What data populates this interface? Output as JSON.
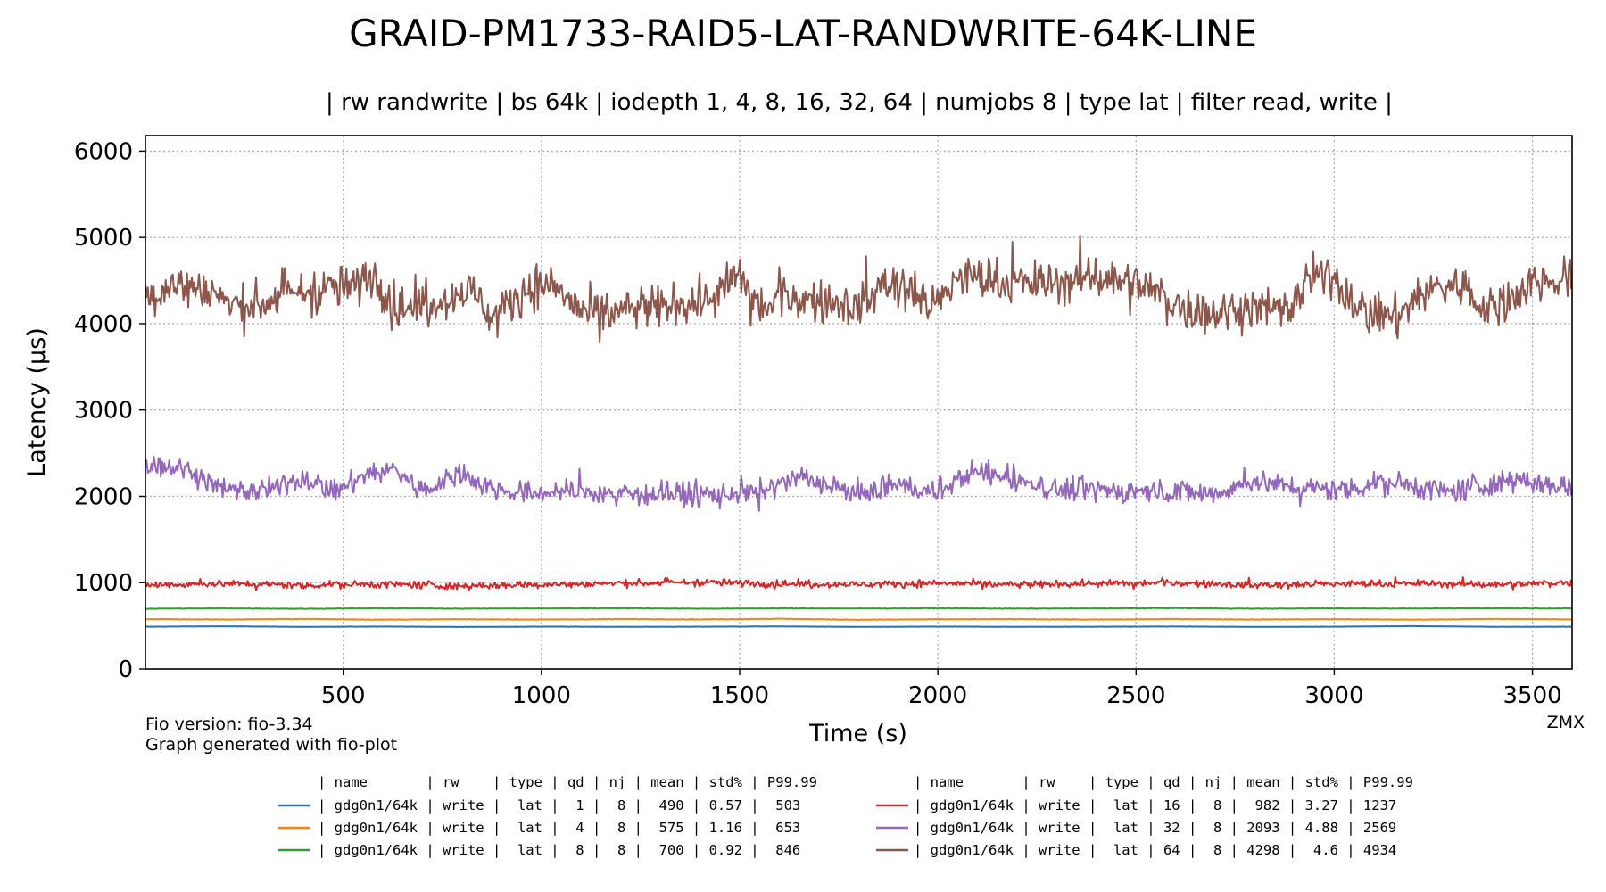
{
  "chart_data": {
    "type": "line",
    "title": "GRAID-PM1733-RAID5-LAT-RANDWRITE-64K-LINE",
    "subtitle": "| rw randwrite | bs 64k | iodepth 1, 4, 8, 16, 32, 64 | numjobs 8 | type lat | filter read, write |",
    "xlabel": "Time (s)",
    "ylabel": "Latency (µs)",
    "xlim": [
      1,
      3600
    ],
    "ylim": [
      0,
      6180
    ],
    "xticks": [
      500,
      1000,
      1500,
      2000,
      2500,
      3000,
      3500
    ],
    "yticks": [
      0,
      1000,
      2000,
      3000,
      4000,
      5000,
      6000
    ],
    "grid": true,
    "notes": [
      "Fio version: fio-3.34",
      "Graph generated with fio-plot"
    ],
    "corner_label": "ZMX",
    "legend_header": "| name       | rw    | type | qd | nj | mean | std% | P99.99",
    "series": [
      {
        "name": "| gdg0n1/64k | write |  lat |  1 |  8 |  490 | 0.57 |  503",
        "color": "#1f77b4",
        "mean": 490,
        "std_pct": 0.57,
        "p9999": 503,
        "x": [
          1,
          200,
          400,
          600,
          800,
          1000,
          1200,
          1400,
          1600,
          1800,
          2000,
          2200,
          2400,
          2600,
          2800,
          3000,
          3200,
          3400,
          3600
        ],
        "values": [
          490,
          495,
          488,
          492,
          487,
          491,
          489,
          490,
          493,
          488,
          491,
          489,
          490,
          492,
          488,
          490,
          497,
          489,
          490
        ]
      },
      {
        "name": "| gdg0n1/64k | write |  lat |  4 |  8 |  575 | 1.16 |  653",
        "color": "#ff7f0e",
        "mean": 575,
        "std_pct": 1.16,
        "p9999": 653,
        "x": [
          1,
          200,
          400,
          600,
          800,
          1000,
          1200,
          1400,
          1600,
          1800,
          2000,
          2200,
          2400,
          2600,
          2800,
          3000,
          3200,
          3400,
          3600
        ],
        "values": [
          578,
          574,
          580,
          572,
          577,
          573,
          579,
          575,
          582,
          571,
          576,
          578,
          573,
          579,
          574,
          577,
          572,
          580,
          575
        ]
      },
      {
        "name": "| gdg0n1/64k | write |  lat |  8 |  8 |  700 | 0.92 |  846",
        "color": "#2ca02c",
        "mean": 700,
        "std_pct": 0.92,
        "p9999": 846,
        "x": [
          1,
          200,
          400,
          600,
          800,
          1000,
          1200,
          1400,
          1600,
          1800,
          2000,
          2200,
          2400,
          2600,
          2800,
          3000,
          3200,
          3400,
          3600
        ],
        "values": [
          698,
          702,
          697,
          703,
          699,
          701,
          704,
          698,
          702,
          700,
          703,
          699,
          701,
          705,
          698,
          702,
          700,
          703,
          701
        ]
      },
      {
        "name": "| gdg0n1/64k | write |  lat | 16 |  8 |  982 | 3.27 | 1237",
        "color": "#d62728",
        "mean": 982,
        "std_pct": 3.27,
        "p9999": 1237,
        "x": [
          1,
          200,
          400,
          600,
          800,
          1000,
          1200,
          1400,
          1600,
          1800,
          2000,
          2200,
          2400,
          2600,
          2800,
          3000,
          3200,
          3400,
          3600
        ],
        "values": [
          975,
          990,
          970,
          985,
          960,
          978,
          992,
          1005,
          985,
          980,
          995,
          975,
          988,
          996,
          972,
          985,
          990,
          978,
          1000
        ]
      },
      {
        "name": "| gdg0n1/64k | write |  lat | 32 |  8 | 2093 | 4.88 | 2569",
        "color": "#9467bd",
        "mean": 2093,
        "std_pct": 4.88,
        "p9999": 2569,
        "x": [
          1,
          100,
          200,
          300,
          400,
          480,
          560,
          630,
          700,
          800,
          850,
          950,
          1050,
          1200,
          1400,
          1550,
          1650,
          1800,
          1900,
          2000,
          2080,
          2170,
          2300,
          2500,
          2700,
          2800,
          2900,
          3000,
          3150,
          3300,
          3450,
          3600
        ],
        "values": [
          2380,
          2320,
          2080,
          2050,
          2220,
          2050,
          2260,
          2320,
          2050,
          2280,
          2120,
          2030,
          2060,
          2030,
          2020,
          2040,
          2220,
          2030,
          2140,
          2040,
          2280,
          2230,
          2080,
          2060,
          2040,
          2180,
          2100,
          2080,
          2160,
          2050,
          2200,
          2080
        ]
      },
      {
        "name": "| gdg0n1/64k | write |  lat | 64 |  8 | 4298 |  4.6 | 4934",
        "color": "#8c564b",
        "mean": 4298,
        "std_pct": 4.6,
        "p9999": 4934,
        "x": [
          1,
          80,
          150,
          230,
          300,
          370,
          450,
          520,
          580,
          640,
          720,
          830,
          880,
          960,
          1030,
          1110,
          1200,
          1310,
          1420,
          1500,
          1560,
          1620,
          1700,
          1800,
          1870,
          1940,
          1990,
          2050,
          2150,
          2280,
          2400,
          2520,
          2600,
          2700,
          2800,
          2880,
          2950,
          3000,
          3080,
          3160,
          3230,
          3320,
          3380,
          3430,
          3510,
          3600
        ],
        "values": [
          4300,
          4450,
          4420,
          4180,
          4250,
          4350,
          4400,
          4420,
          4550,
          4150,
          4250,
          4380,
          4050,
          4420,
          4450,
          4100,
          4150,
          4200,
          4250,
          4550,
          4150,
          4320,
          4250,
          4200,
          4480,
          4400,
          4150,
          4550,
          4500,
          4450,
          4550,
          4450,
          4200,
          4120,
          4200,
          4150,
          4550,
          4520,
          4120,
          4080,
          4400,
          4450,
          4150,
          4250,
          4500,
          4500
        ]
      }
    ]
  }
}
